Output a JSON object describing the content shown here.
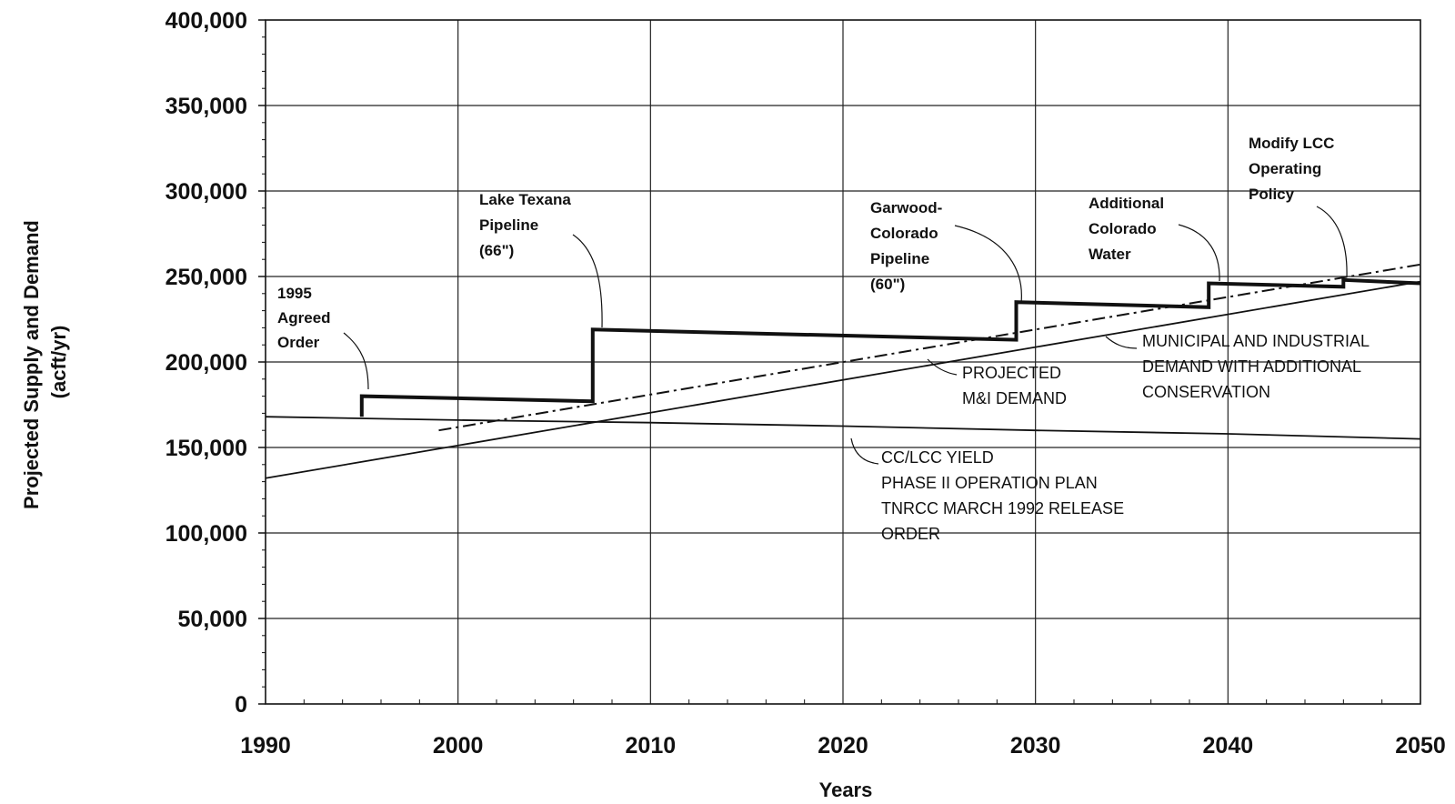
{
  "chart_data": {
    "type": "line",
    "xlabel": "Years",
    "ylabel": [
      "Projected Supply and Demand",
      "(acft/yr)"
    ],
    "xlim": [
      1990,
      2050
    ],
    "ylim": [
      0,
      400000
    ],
    "x_ticks": [
      1990,
      2000,
      2010,
      2020,
      2030,
      2040,
      2050
    ],
    "x_tick_labels": [
      "1990",
      "2000",
      "2010",
      "2020",
      "2030",
      "2040",
      "2050"
    ],
    "y_ticks": [
      0,
      50000,
      100000,
      150000,
      200000,
      250000,
      300000,
      350000,
      400000
    ],
    "y_tick_labels": [
      "0",
      "50,000",
      "100,000",
      "150,000",
      "200,000",
      "250,000",
      "300,000",
      "350,000",
      "400,000"
    ],
    "grid": true,
    "series": [
      {
        "key": "supply",
        "style": "thick-step",
        "x": [
          1995,
          1995,
          2007,
          2007,
          2029,
          2029,
          2039,
          2039,
          2046,
          2046,
          2050
        ],
        "y": [
          168000,
          180000,
          177000,
          219000,
          213000,
          235000,
          232000,
          246000,
          244000,
          248000,
          246000
        ]
      },
      {
        "key": "yield",
        "style": "thin",
        "x": [
          1990,
          2000,
          2010,
          2020,
          2030,
          2040,
          2050
        ],
        "y": [
          168000,
          166000,
          164500,
          162500,
          160000,
          158000,
          155000
        ]
      },
      {
        "key": "projected_demand",
        "style": "dash-dot",
        "x": [
          1999,
          2050
        ],
        "y": [
          160000,
          257000
        ]
      },
      {
        "key": "demand_conservation",
        "style": "thin",
        "x": [
          1990,
          2050
        ],
        "y": [
          132000,
          247000
        ]
      }
    ],
    "annotations": [
      {
        "key": "agreed_order",
        "lines": [
          "1995",
          "Agreed",
          "Order"
        ]
      },
      {
        "key": "texana",
        "lines": [
          "Lake Texana",
          "Pipeline",
          "(66\")"
        ]
      },
      {
        "key": "garwood",
        "lines": [
          "Garwood-",
          "Colorado",
          "Pipeline",
          "(60\")"
        ]
      },
      {
        "key": "additional",
        "lines": [
          "Additional",
          "Colorado",
          "Water"
        ]
      },
      {
        "key": "modify",
        "lines": [
          "Modify LCC",
          "Operating",
          "Policy"
        ]
      },
      {
        "key": "mi_conservation",
        "lines": [
          "MUNICIPAL AND INDUSTRIAL",
          "DEMAND WITH ADDITIONAL",
          "CONSERVATION"
        ]
      },
      {
        "key": "projected_mi",
        "lines": [
          "PROJECTED",
          "M&I DEMAND"
        ]
      },
      {
        "key": "yield_label",
        "lines": [
          "CC/LCC YIELD",
          "PHASE II OPERATION PLAN",
          "TNRCC MARCH 1992 RELEASE",
          "ORDER"
        ]
      }
    ],
    "colors": {
      "line": "#111111",
      "grid": "#222222",
      "background": "#ffffff"
    }
  }
}
